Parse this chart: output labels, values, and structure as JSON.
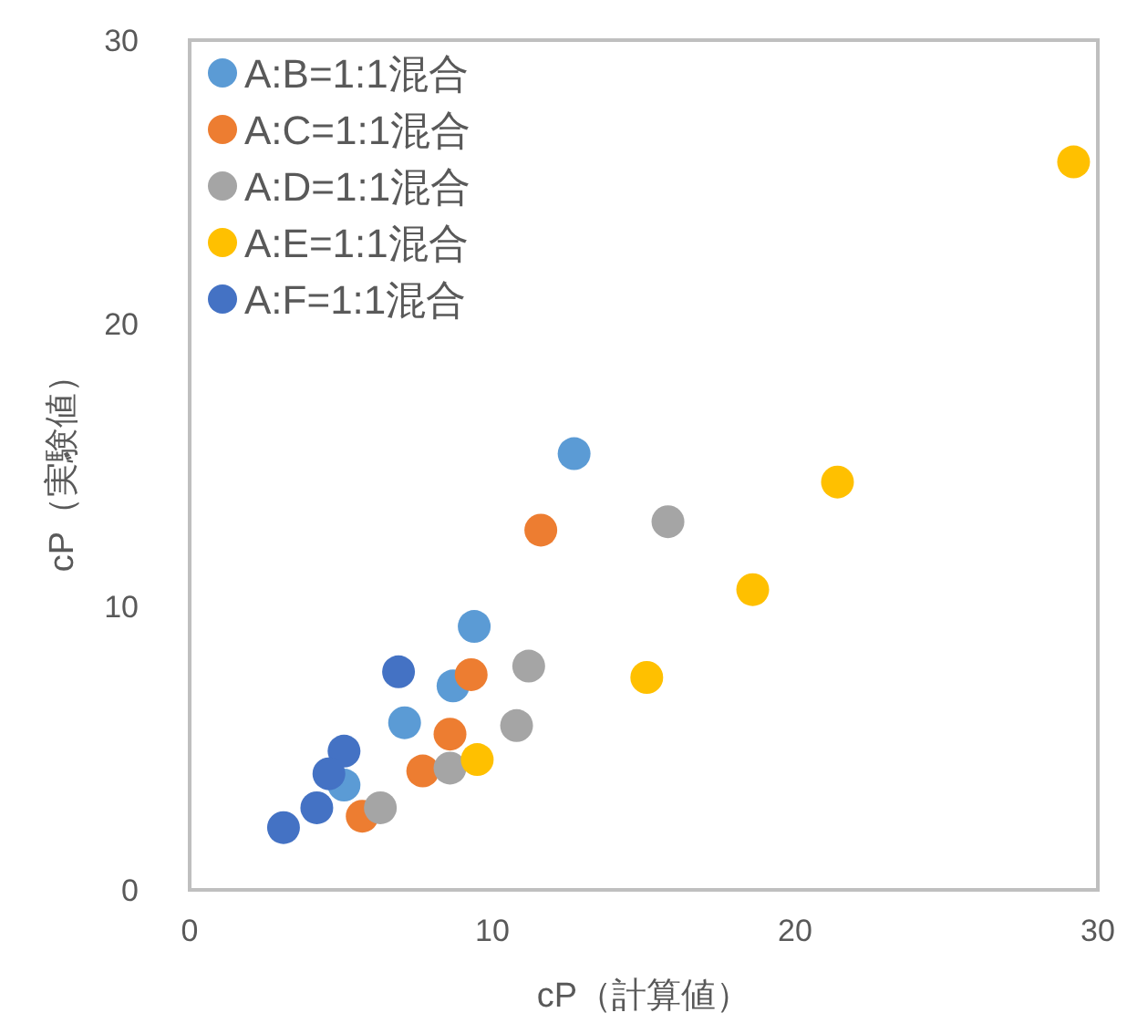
{
  "chart_data": {
    "type": "scatter",
    "xlabel": "cP（計算値）",
    "ylabel": "cP（実験値）",
    "xlim": [
      0,
      30
    ],
    "ylim": [
      0,
      30
    ],
    "xticks": [
      0,
      10,
      20,
      30
    ],
    "yticks": [
      0,
      10,
      20,
      30
    ],
    "grid": false,
    "legend": "top left",
    "marker": "circle",
    "series": [
      {
        "name": "A:B=1:1混合",
        "color": "#5b9bd5",
        "x": [
          12.7,
          9.4,
          8.7,
          7.1,
          5.1
        ],
        "values": [
          15.4,
          9.3,
          7.2,
          5.9,
          3.7
        ]
      },
      {
        "name": "A:C=1:1混合",
        "color": "#ed7d31",
        "x": [
          11.6,
          9.3,
          8.6,
          7.7,
          5.7
        ],
        "values": [
          12.7,
          7.6,
          5.5,
          4.2,
          2.6
        ]
      },
      {
        "name": "A:D=1:1混合",
        "color": "#a5a5a5",
        "x": [
          15.8,
          11.2,
          10.8,
          8.6,
          6.3
        ],
        "values": [
          13.0,
          7.9,
          5.8,
          4.3,
          2.9
        ]
      },
      {
        "name": "A:E=1:1混合",
        "color": "#ffc000",
        "x": [
          29.2,
          21.4,
          18.6,
          15.1,
          9.5
        ],
        "values": [
          25.7,
          14.4,
          10.6,
          7.5,
          4.6
        ]
      },
      {
        "name": "A:F=1:1混合",
        "color": "#4472c4",
        "x": [
          6.9,
          5.1,
          4.6,
          4.2,
          3.1
        ],
        "values": [
          7.7,
          4.9,
          4.1,
          2.9,
          2.2
        ]
      }
    ]
  }
}
